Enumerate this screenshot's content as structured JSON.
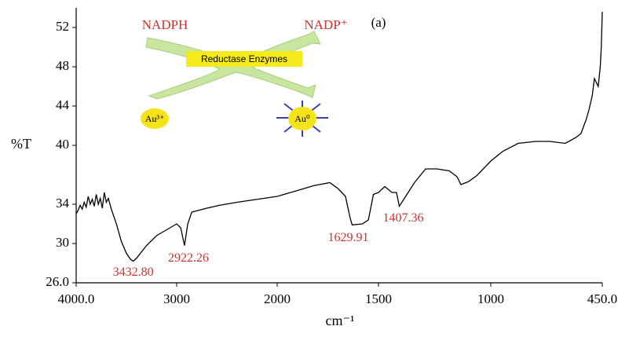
{
  "chart_data": {
    "type": "line",
    "panel_label": "(a)",
    "xlabel": "cm⁻¹",
    "ylabel": "%T",
    "xlim": [
      4000,
      450
    ],
    "ylim": [
      26,
      54
    ],
    "xticks": [
      {
        "value": 4000,
        "label": "4000.0"
      },
      3000,
      2000,
      1500,
      1000,
      {
        "value": 450,
        "label": "450.0"
      }
    ],
    "yticks": [
      {
        "value": 26,
        "label": "26.0"
      },
      30,
      34,
      40,
      44,
      48,
      52
    ],
    "x": [
      4000,
      3980,
      3960,
      3940,
      3920,
      3900,
      3880,
      3860,
      3840,
      3820,
      3800,
      3780,
      3760,
      3740,
      3720,
      3700,
      3680,
      3650,
      3600,
      3550,
      3500,
      3460,
      3432.8,
      3400,
      3300,
      3200,
      3100,
      3000,
      2960,
      2922.26,
      2890,
      2850,
      2700,
      2570,
      2400,
      2200,
      2000,
      1900,
      1818,
      1740,
      1700,
      1663,
      1640,
      1629.91,
      1580,
      1550,
      1525,
      1500,
      1472,
      1440,
      1420,
      1407.36,
      1379,
      1340,
      1290,
      1240,
      1185,
      1150,
      1133,
      1100,
      1063,
      1000,
      940,
      865,
      780,
      710,
      632,
      580,
      555,
      530,
      516,
      500,
      489,
      470,
      460,
      455,
      450
    ],
    "series": [
      {
        "color": "#000000",
        "values": [
          33.0,
          33.4,
          33.9,
          33.5,
          34.2,
          33.7,
          34.8,
          34.0,
          34.5,
          33.8,
          35.0,
          34.0,
          34.6,
          33.6,
          35.2,
          34.2,
          34.6,
          33.5,
          32.0,
          30.2,
          29.0,
          28.4,
          28.2,
          28.5,
          29.8,
          30.8,
          31.4,
          32.0,
          31.6,
          29.8,
          32.0,
          33.2,
          33.6,
          33.9,
          34.2,
          34.5,
          34.8,
          35.4,
          35.9,
          36.2,
          35.6,
          34.8,
          32.6,
          31.9,
          32.0,
          32.4,
          35.0,
          35.2,
          35.8,
          35.2,
          35.2,
          33.8,
          34.8,
          36.2,
          37.6,
          37.6,
          37.4,
          36.8,
          36.0,
          36.3,
          36.9,
          38.4,
          39.4,
          40.2,
          40.4,
          40.4,
          40.2,
          40.8,
          41.2,
          42.6,
          43.6,
          45.0,
          46.8,
          46.0,
          48.0,
          50.0,
          53.6
        ]
      }
    ],
    "annotations": [
      {
        "text": "3432.80",
        "x": 3432.8,
        "y": 28.2
      },
      {
        "text": "2922.26",
        "x": 2922.26,
        "y": 29.8
      },
      {
        "text": "1629.91",
        "x": 1629.91,
        "y": 31.9
      },
      {
        "text": "1407.36",
        "x": 1407.36,
        "y": 33.8
      }
    ],
    "inset": {
      "reactant": "NADPH",
      "product": "NADP⁺",
      "enzyme": "Reductase Enzymes",
      "ion": "Au³⁺",
      "particle": "Au⁰"
    }
  }
}
